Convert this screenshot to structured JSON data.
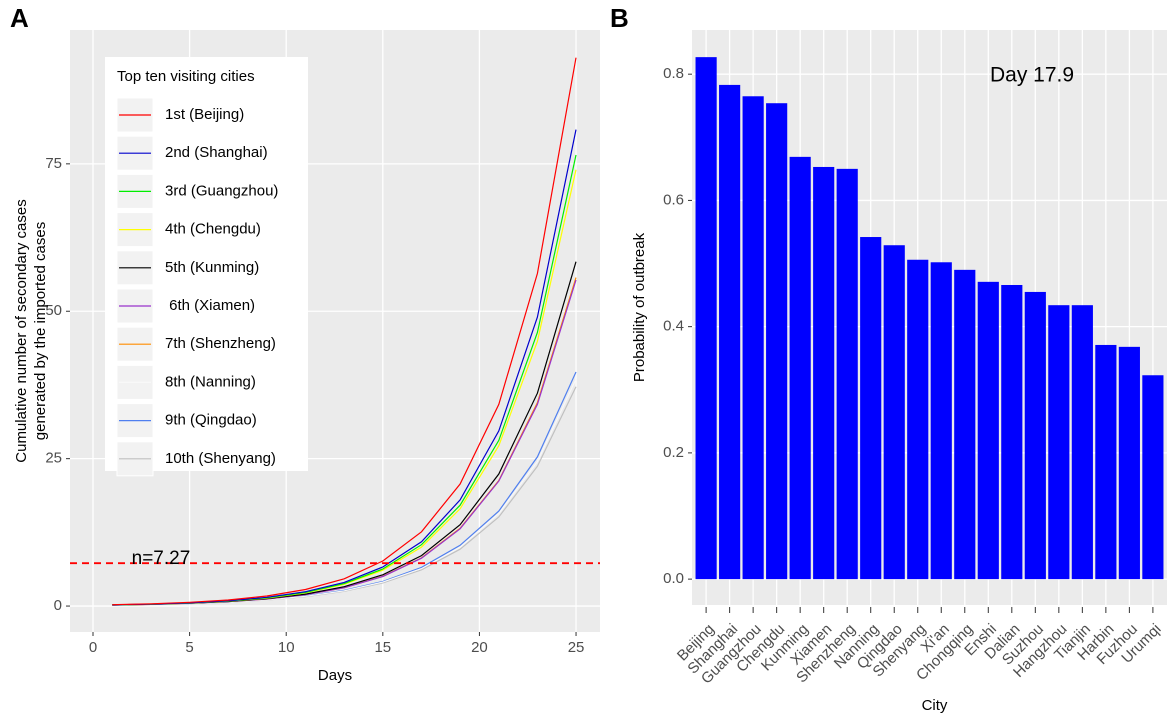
{
  "chart_data": [
    {
      "type": "line",
      "tag": "A",
      "x": [
        1,
        3,
        5,
        7,
        9,
        11,
        13,
        15,
        17,
        19,
        21,
        23,
        25
      ],
      "series": [
        {
          "name": "1st (Beijing)",
          "color": "#ff0000",
          "values": [
            0.23,
            0.38,
            0.63,
            1.03,
            1.7,
            2.81,
            4.63,
            7.64,
            12.6,
            20.7,
            34.2,
            56.4,
            93
          ]
        },
        {
          "name": "2nd (Shanghai)",
          "color": "#0000cd",
          "values": [
            0.2,
            0.33,
            0.54,
            0.9,
            1.48,
            2.44,
            4.02,
            6.63,
            10.9,
            18,
            29.7,
            49,
            80.8
          ]
        },
        {
          "name": "3rd (Guangzhou)",
          "color": "#00ee00",
          "values": [
            0.19,
            0.31,
            0.52,
            0.85,
            1.4,
            2.31,
            3.81,
            6.28,
            10.4,
            17.1,
            28.1,
            46.4,
            76.5
          ]
        },
        {
          "name": "4th (Chengdu)",
          "color": "#ffff00",
          "values": [
            0.18,
            0.3,
            0.5,
            0.82,
            1.35,
            2.23,
            3.69,
            6.08,
            10,
            16.5,
            27.2,
            44.9,
            74
          ]
        },
        {
          "name": "5th (Kunming)",
          "color": "#000000",
          "values": [
            0.18,
            0.3,
            0.48,
            0.78,
            1.26,
            2.03,
            3.28,
            5.3,
            8.56,
            13.8,
            22.4,
            36.1,
            58.4
          ]
        },
        {
          "name": " 6th (Xiamen)",
          "color": "#9932cc",
          "values": [
            0.17,
            0.28,
            0.46,
            0.74,
            1.19,
            1.92,
            3.1,
            5.02,
            8.11,
            13.1,
            21.2,
            34.2,
            55.3
          ]
        },
        {
          "name": "7th (Shenzheng)",
          "color": "#ff8c00",
          "values": [
            0.18,
            0.28,
            0.46,
            0.74,
            1.2,
            1.93,
            3.12,
            5.05,
            8.17,
            13.2,
            21.3,
            34.5,
            55.7
          ]
        },
        {
          "name": "8th (Nanning)",
          "color": "#f8f8f8",
          "values": [
            0.17,
            0.27,
            0.43,
            0.67,
            1.05,
            1.65,
            2.59,
            4.06,
            6.36,
            9.98,
            15.7,
            24.5,
            38.5
          ]
        },
        {
          "name": "9th (Qingdao)",
          "color": "#4f7fef",
          "values": [
            0.18,
            0.28,
            0.44,
            0.69,
            1.08,
            1.7,
            2.67,
            4.18,
            6.56,
            10.3,
            16.1,
            25.3,
            39.7
          ]
        },
        {
          "name": "10th (Shenyang)",
          "color": "#c0c0c0",
          "values": [
            0.17,
            0.26,
            0.41,
            0.65,
            1.02,
            1.6,
            2.5,
            3.92,
            6.15,
            9.64,
            15.1,
            23.7,
            37.2
          ]
        }
      ],
      "xlim": [
        -1.19,
        26.24
      ],
      "ylim": [
        -4.4,
        97.7
      ],
      "xticks": [
        0,
        5,
        10,
        15,
        20,
        25
      ],
      "yticks": [
        0,
        25,
        50,
        75
      ],
      "xlabel": "Days",
      "ylabel": [
        "Cumulative number of secondary cases",
        "generated by the imported cases"
      ],
      "legend_title": "Top ten visiting cities",
      "legend_position": "top-left",
      "hline": {
        "value": 7.27,
        "label": "n=7.27",
        "color": "#ff0000"
      },
      "grid": true
    },
    {
      "type": "bar",
      "tag": "B",
      "categories": [
        "Beijing",
        "Shanghai",
        "Guangzhou",
        "Chengdu",
        "Kunming",
        "Xiamen",
        "Shenzheng",
        "Nanning",
        "Qingdao",
        "Shenyang",
        "Xi'an",
        "Chongqing",
        "Enshi",
        "Dalian",
        "Suzhou",
        "Hangzhou",
        "Tianjin",
        "Harbin",
        "Fuzhou",
        "Urumqi"
      ],
      "values": [
        0.827,
        0.783,
        0.765,
        0.754,
        0.669,
        0.653,
        0.65,
        0.542,
        0.529,
        0.506,
        0.502,
        0.49,
        0.471,
        0.466,
        0.455,
        0.434,
        0.434,
        0.371,
        0.368,
        0.323
      ],
      "color": "#0000ff",
      "ylim": [
        -0.041,
        0.87
      ],
      "yticks": [
        {
          "value": 0,
          "label": "0.0"
        },
        0.2,
        0.4,
        0.6,
        0.8
      ],
      "xlabel": "City",
      "ylabel": "Probability of outbreak",
      "annotation": "Day 17.9",
      "grid": true
    }
  ]
}
